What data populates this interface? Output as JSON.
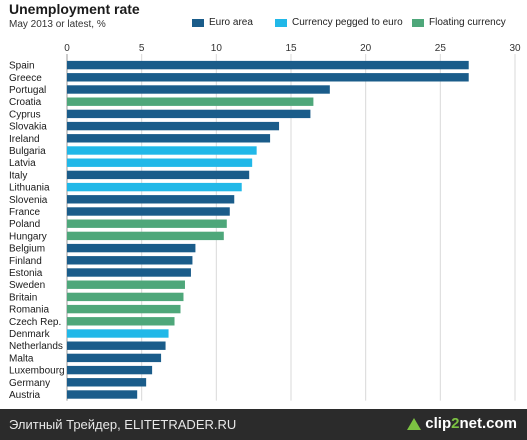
{
  "chart_data": {
    "type": "bar",
    "orientation": "horizontal",
    "title": "Unemployment rate",
    "subtitle": "May 2013 or latest, %",
    "xlim": [
      0,
      30
    ],
    "x_ticks": [
      0,
      5,
      10,
      15,
      20,
      25,
      30
    ],
    "grid": true,
    "legend_position": "top",
    "legend": [
      {
        "key": "euro",
        "label": "Euro area",
        "color": "#1a5c8a"
      },
      {
        "key": "pegged",
        "label": "Currency pegged to euro",
        "color": "#21b8e8"
      },
      {
        "key": "floating",
        "label": "Floating currency",
        "color": "#4ea77a"
      }
    ],
    "categories": [
      "Spain",
      "Greece",
      "Portugal",
      "Croatia",
      "Cyprus",
      "Slovakia",
      "Ireland",
      "Bulgaria",
      "Latvia",
      "Italy",
      "Lithuania",
      "Slovenia",
      "France",
      "Poland",
      "Hungary",
      "Belgium",
      "Finland",
      "Estonia",
      "Sweden",
      "Britain",
      "Romania",
      "Czech Rep.",
      "Denmark",
      "Netherlands",
      "Malta",
      "Luxembourg",
      "Germany",
      "Austria"
    ],
    "values": [
      26.9,
      26.9,
      17.6,
      16.5,
      16.3,
      14.2,
      13.6,
      12.7,
      12.4,
      12.2,
      11.7,
      11.2,
      10.9,
      10.7,
      10.5,
      8.6,
      8.4,
      8.3,
      7.9,
      7.8,
      7.6,
      7.2,
      6.8,
      6.6,
      6.3,
      5.7,
      5.3,
      4.7
    ],
    "groups": [
      "euro",
      "euro",
      "euro",
      "floating",
      "euro",
      "euro",
      "euro",
      "pegged",
      "pegged",
      "euro",
      "pegged",
      "euro",
      "euro",
      "floating",
      "floating",
      "euro",
      "euro",
      "euro",
      "floating",
      "floating",
      "floating",
      "floating",
      "pegged",
      "euro",
      "euro",
      "euro",
      "euro",
      "euro"
    ]
  },
  "footer": {
    "left_text": "Элитный Трейдер, ELITETRADER.RU",
    "logo_prefix": "clip",
    "logo_two": "2",
    "logo_suffix": "net.com"
  }
}
